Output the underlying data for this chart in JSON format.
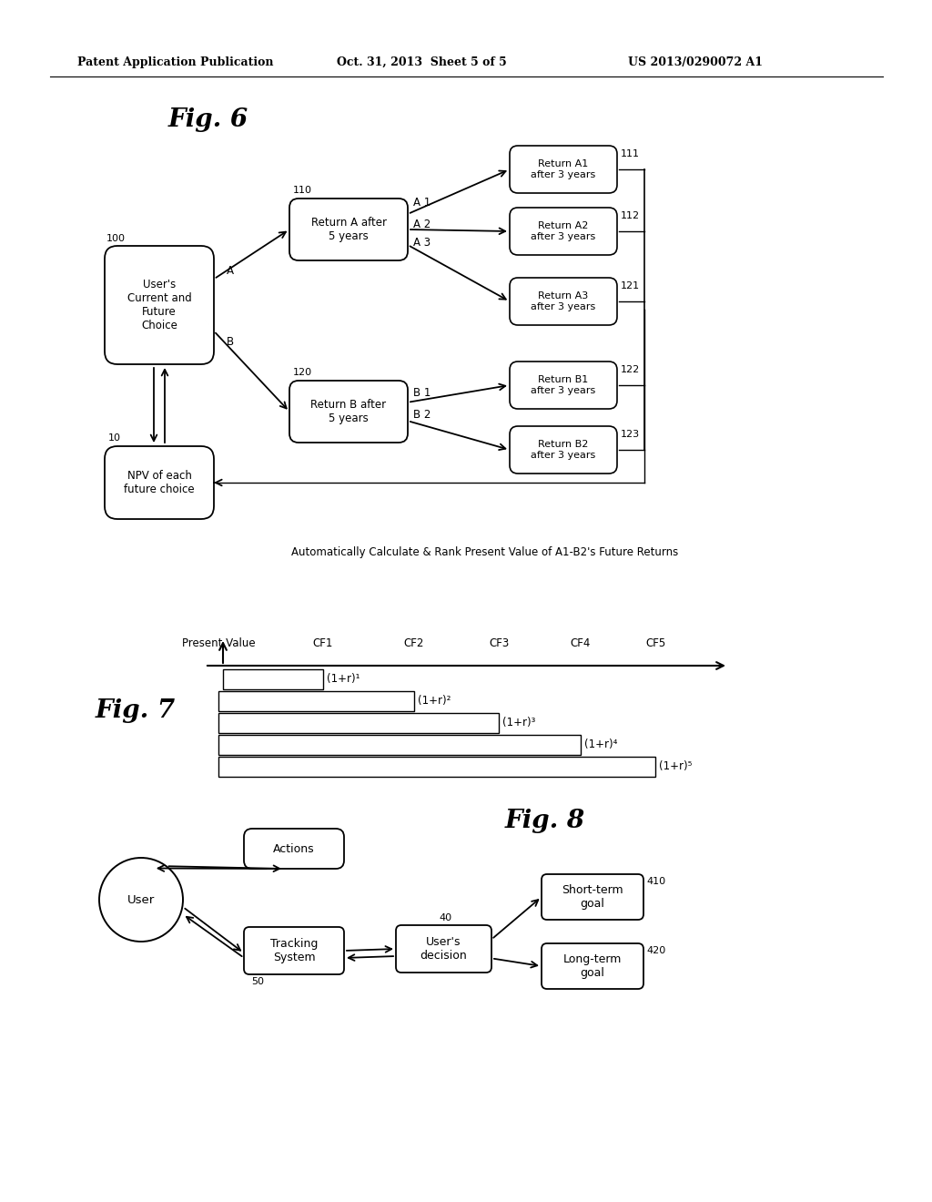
{
  "background_color": "#ffffff",
  "header_left": "Patent Application Publication",
  "header_mid": "Oct. 31, 2013  Sheet 5 of 5",
  "header_right": "US 2013/0290072 A1",
  "fig6_title": "Fig. 6",
  "fig7_title": "Fig. 7",
  "fig8_title": "Fig. 8",
  "fig6_caption": "Automatically Calculate & Rank Present Value of A1-B2's Future Returns",
  "fig7_cf_labels": [
    "Present Value",
    "CF1",
    "CF2",
    "CF3",
    "CF4",
    "CF5"
  ],
  "fig7_bar_labels": [
    "(1+r)¹",
    "(1+r)²",
    "(1+r)³",
    "(1+r)⁴",
    "(1+r)⁵"
  ]
}
